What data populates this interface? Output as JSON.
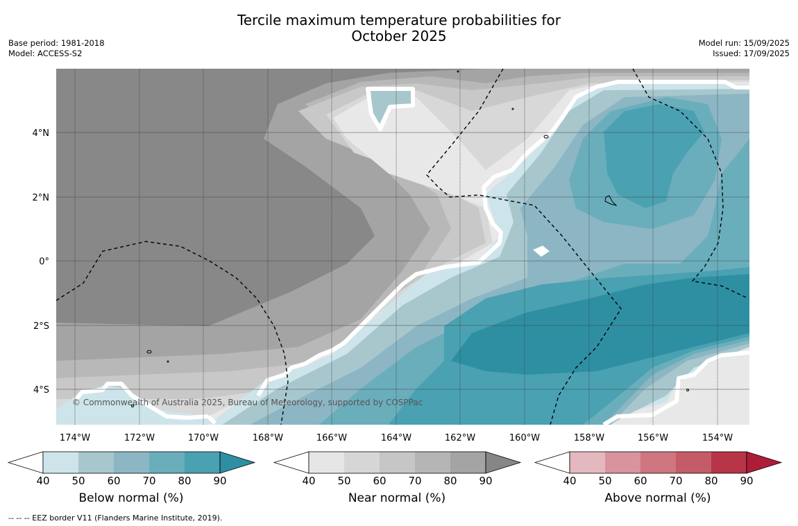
{
  "title_line1": "Tercile maximum temperature probabilities for",
  "title_line2": "October 2025",
  "meta_left": {
    "base_period": "Base period: 1981-2018",
    "model": "Model: ACCESS-S2"
  },
  "meta_right": {
    "model_run": "Model run: 15/09/2025",
    "issued": "Issued: 17/09/2025"
  },
  "map": {
    "copyright": "© Commonwealth of Australia 2025, Bureau of Meteorology, supported by COSPPac",
    "lon_labels": [
      "174°W",
      "172°W",
      "170°W",
      "168°W",
      "166°W",
      "164°W",
      "162°W",
      "160°W",
      "158°W",
      "156°W",
      "154°W"
    ],
    "lat_labels": [
      "4°N",
      "2°N",
      "0°",
      "2°S",
      "4°S"
    ]
  },
  "colorbars": [
    {
      "label": "Below normal (%)",
      "ticks": [
        "40",
        "50",
        "60",
        "70",
        "80",
        "90"
      ],
      "colors": [
        "#cde4ea",
        "#a7c7cd",
        "#8cb6c4",
        "#6aaebc",
        "#4aa1b2",
        "#2e8fa3"
      ]
    },
    {
      "label": "Near normal (%)",
      "ticks": [
        "40",
        "50",
        "60",
        "70",
        "80",
        "90"
      ],
      "colors": [
        "#e6e6e6",
        "#d6d6d6",
        "#c6c6c6",
        "#b5b5b5",
        "#a4a4a4",
        "#868686"
      ]
    },
    {
      "label": "Above normal (%)",
      "ticks": [
        "40",
        "50",
        "60",
        "70",
        "80",
        "90"
      ],
      "colors": [
        "#e3b8bf",
        "#d9939d",
        "#cf7680",
        "#c45c68",
        "#b83447",
        "#ae1d38"
      ]
    }
  ],
  "footnote": "-- -- -- EEZ border V11 (Flanders Marine Institute, 2019)."
}
